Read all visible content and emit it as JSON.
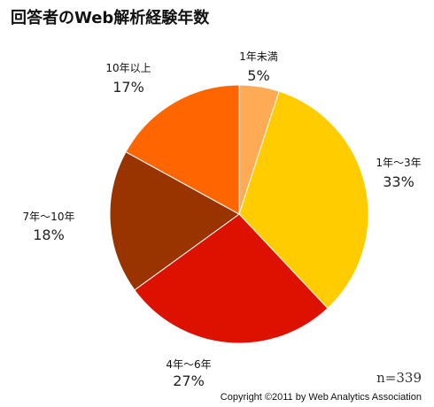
{
  "chart_data": {
    "type": "pie",
    "title": "回答者のWeb解析経験年数",
    "slices": [
      {
        "label": "1年未満",
        "value": 5,
        "display": "5%",
        "color": "#ffaa55"
      },
      {
        "label": "1年〜3年",
        "value": 33,
        "display": "33%",
        "color": "#ffcc00"
      },
      {
        "label": "4年〜6年",
        "value": 27,
        "display": "27%",
        "color": "#dd1100"
      },
      {
        "label": "7年〜10年",
        "value": 18,
        "display": "18%",
        "color": "#993300"
      },
      {
        "label": "10年以上",
        "value": 17,
        "display": "17%",
        "color": "#ff6600"
      }
    ],
    "start": "12 o'clock",
    "direction": "clockwise",
    "legend": "none"
  },
  "footer": {
    "sample_size": "n=339",
    "copyright": "Copyright ©2011 by Web Analytics Association"
  }
}
